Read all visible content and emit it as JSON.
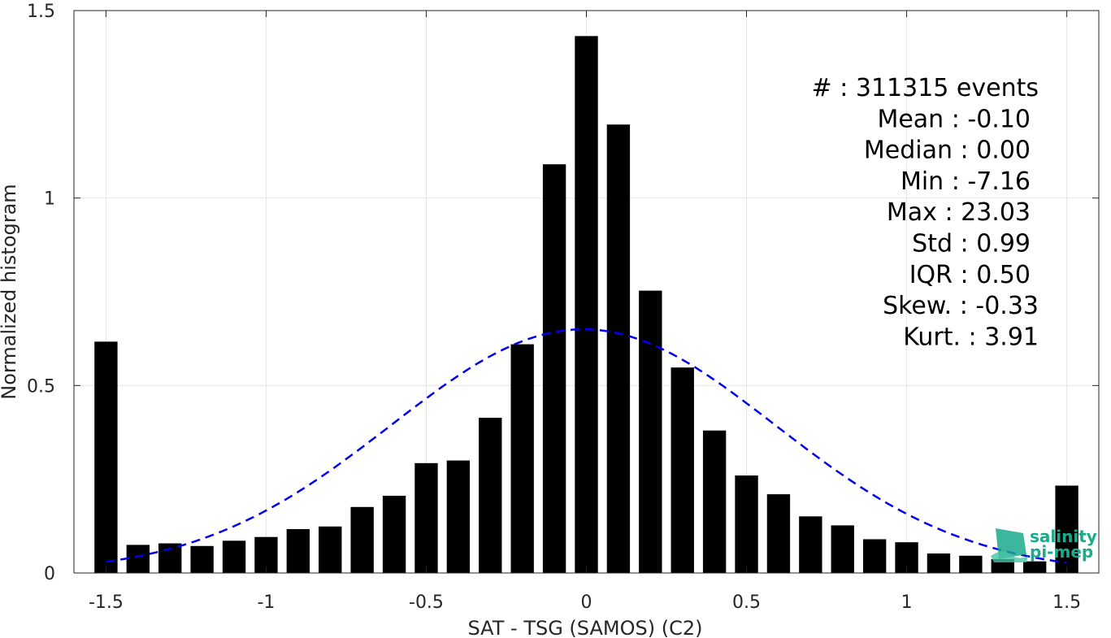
{
  "chart_data": {
    "type": "bar",
    "xlabel": "SAT - TSG (SAMOS) (C2)",
    "ylabel": "Normalized histogram",
    "xlim": [
      -1.6,
      1.6
    ],
    "ylim": [
      0,
      1.5
    ],
    "xticks": [
      -1.5,
      -1,
      -0.5,
      0,
      0.5,
      1,
      1.5
    ],
    "xtick_labels": [
      "-1.5",
      "-1",
      "-0.5",
      "0",
      "0.5",
      "1",
      "1.5"
    ],
    "yticks": [
      0,
      0.5,
      1,
      1.5
    ],
    "ytick_labels": [
      "0",
      "0.5",
      "1",
      "1.5"
    ],
    "grid": true,
    "bar_color": "#000000",
    "bin_width": 0.1,
    "bars": {
      "x": [
        -1.5,
        -1.4,
        -1.3,
        -1.2,
        -1.1,
        -1.0,
        -0.9,
        -0.8,
        -0.7,
        -0.6,
        -0.5,
        -0.4,
        -0.3,
        -0.2,
        -0.1,
        0.0,
        0.1,
        0.2,
        0.3,
        0.4,
        0.5,
        0.6,
        0.7,
        0.8,
        0.9,
        1.0,
        1.1,
        1.2,
        1.3,
        1.4,
        1.5
      ],
      "values": [
        0.617,
        0.075,
        0.079,
        0.072,
        0.086,
        0.096,
        0.117,
        0.124,
        0.176,
        0.206,
        0.293,
        0.3,
        0.414,
        0.61,
        1.09,
        1.432,
        1.196,
        0.753,
        0.548,
        0.38,
        0.26,
        0.21,
        0.151,
        0.127,
        0.09,
        0.082,
        0.052,
        0.046,
        0.037,
        0.031,
        0.233
      ]
    },
    "fit_curve": {
      "type": "gaussian",
      "style": "dashed",
      "color": "#0000ee",
      "mean": -0.01,
      "std": 0.6,
      "peak": 0.65,
      "x_range": [
        -1.5,
        1.5
      ]
    },
    "stats": [
      "#  : 311315 events",
      "Mean : -0.10",
      "Median : 0.00",
      "Min : -7.16",
      "Max : 23.03",
      "Std : 0.99",
      "IQR : 0.50",
      "Skew. : -0.33",
      "Kurt. : 3.91"
    ]
  },
  "logo": {
    "line1": "salinity",
    "line2": "pi-mep",
    "color": "#1aaa8c"
  }
}
